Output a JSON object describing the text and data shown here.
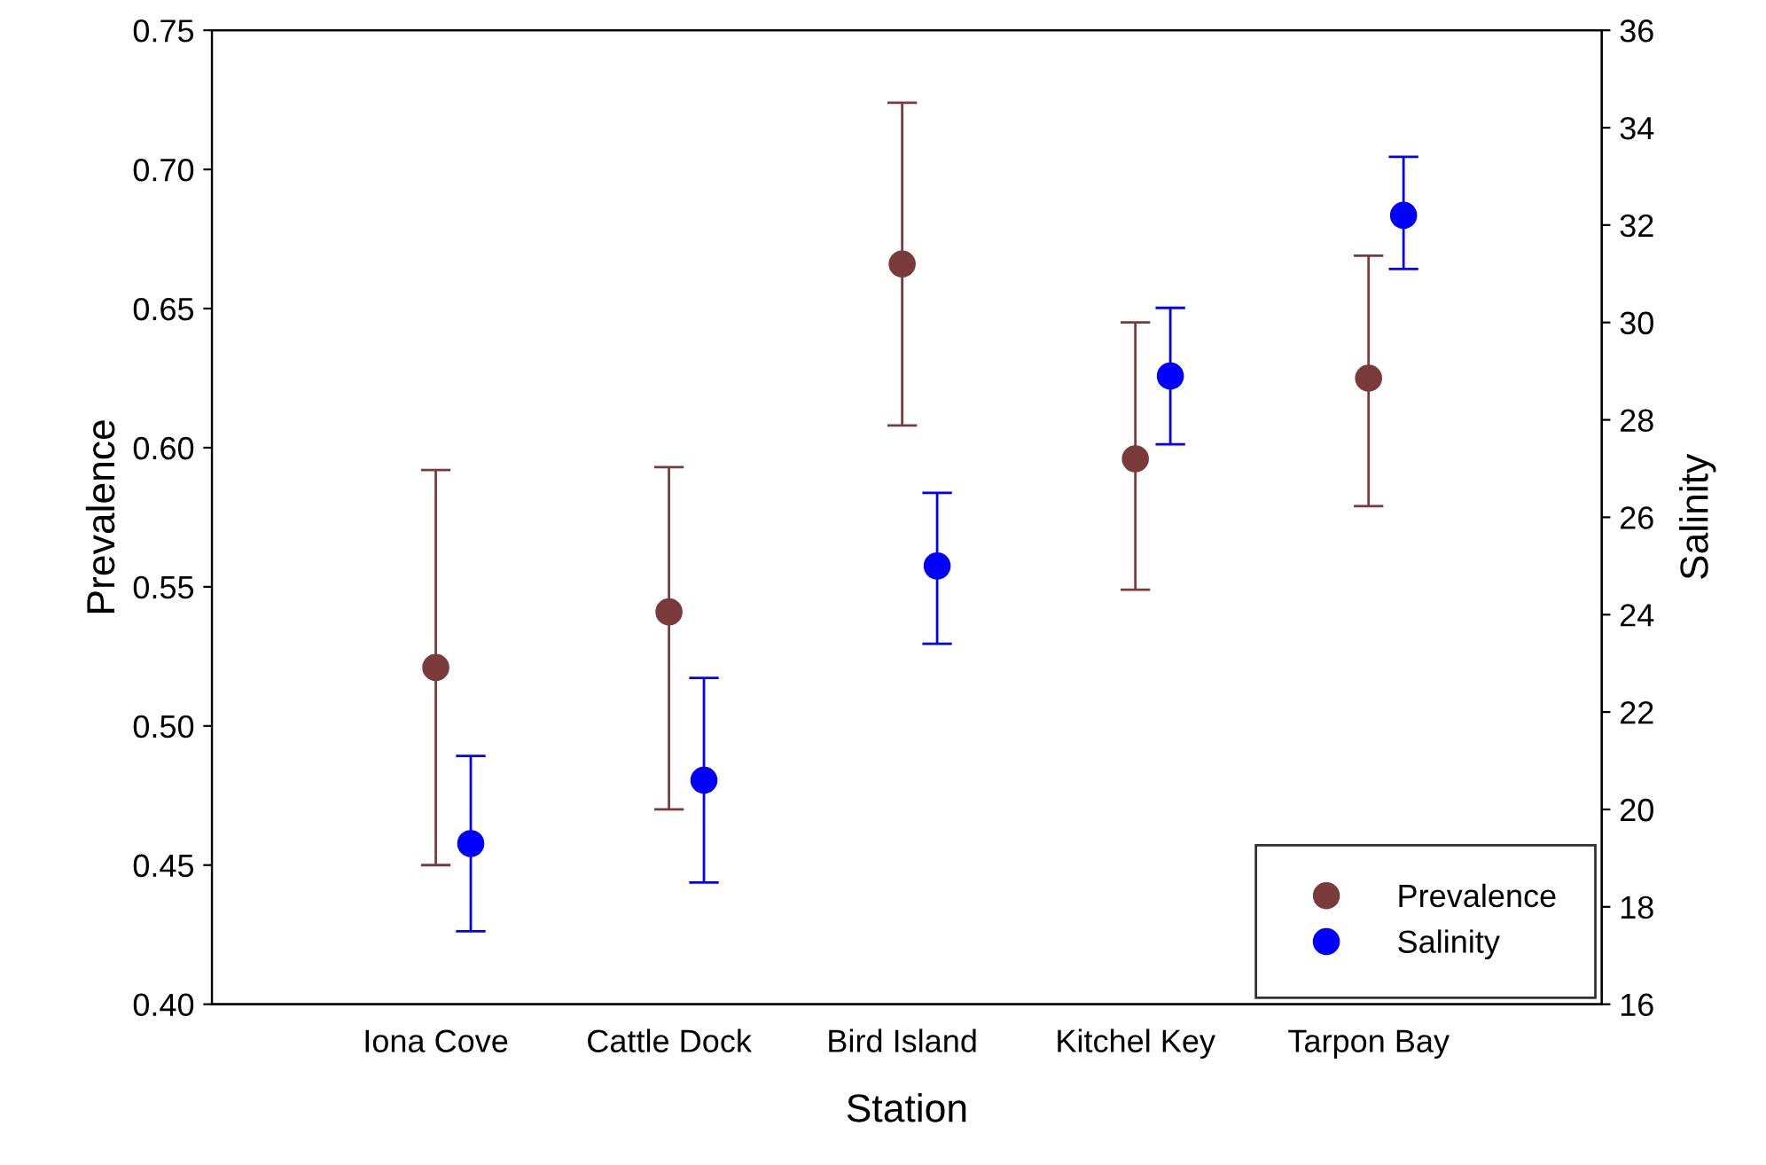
{
  "chart_data": {
    "type": "scatter",
    "xlabel": "Station",
    "ylabel": "Prevalence",
    "y2label": "Salinity",
    "categories": [
      "Iona Cove",
      "Cattle Dock",
      "Bird Island",
      "Kitchel Key",
      "Tarpon Bay"
    ],
    "series": [
      {
        "name": "Prevalence",
        "color": "#7b3b3b",
        "values": [
          0.521,
          0.541,
          0.666,
          0.596,
          0.625
        ],
        "errors": [
          [
            0.45,
            0.592
          ],
          [
            0.47,
            0.593
          ],
          [
            0.608,
            0.724
          ],
          [
            0.549,
            0.645
          ],
          [
            0.579,
            0.669
          ]
        ]
      },
      {
        "name": "Salinity",
        "color": "#0000ff",
        "axis": "y2",
        "values": [
          19.3,
          20.6,
          25.0,
          28.9,
          32.2
        ],
        "errors": [
          [
            17.5,
            21.1
          ],
          [
            18.5,
            22.7
          ],
          [
            23.4,
            26.5
          ],
          [
            27.5,
            30.3
          ],
          [
            31.1,
            33.4
          ]
        ]
      }
    ],
    "ylim": [
      0.4,
      0.75
    ],
    "yticks": [
      {
        "value": 0.4,
        "label": "0.40"
      },
      {
        "value": 0.45,
        "label": "0.45"
      },
      {
        "value": 0.5,
        "label": "0.50"
      },
      {
        "value": 0.55,
        "label": "0.55"
      },
      {
        "value": 0.6,
        "label": "0.60"
      },
      {
        "value": 0.65,
        "label": "0.65"
      },
      {
        "value": 0.7,
        "label": "0.70"
      },
      {
        "value": 0.75,
        "label": "0.75"
      }
    ],
    "y2lim": [
      16,
      36
    ],
    "y2ticks": [
      16,
      18,
      20,
      22,
      24,
      26,
      28,
      30,
      32,
      34,
      36
    ],
    "marker": "circle",
    "grid": false,
    "legend": "bottom right"
  }
}
